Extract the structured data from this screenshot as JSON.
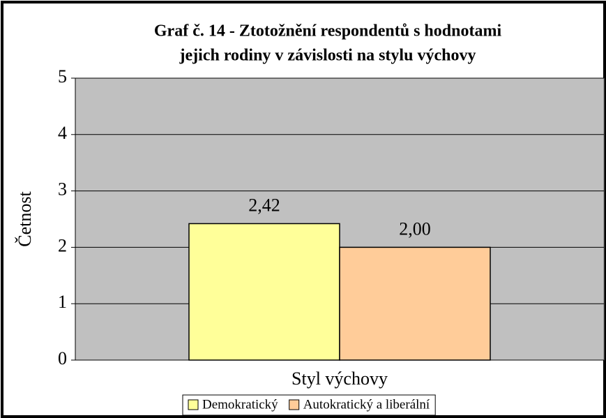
{
  "chart_data": {
    "type": "bar",
    "title": [
      "Graf č. 14 - Ztotožnění respondentů s hodnotami",
      "jejich rodiny v závislosti na stylu výchovy"
    ],
    "categories": [
      "Styl výchovy"
    ],
    "y_label": "Četnost",
    "series": [
      {
        "name": "Demokratický",
        "color": "#ffff99",
        "values": [
          2.42
        ],
        "value_labels": [
          "2,42"
        ]
      },
      {
        "name": "Autokratický a liberální",
        "color": "#ffcc99",
        "values": [
          2.0
        ],
        "value_labels": [
          "2,00"
        ]
      }
    ],
    "ylim": [
      0,
      5
    ],
    "yticks": [
      0,
      1,
      2,
      3,
      4,
      5
    ],
    "grid": true,
    "legend": "bottom"
  }
}
